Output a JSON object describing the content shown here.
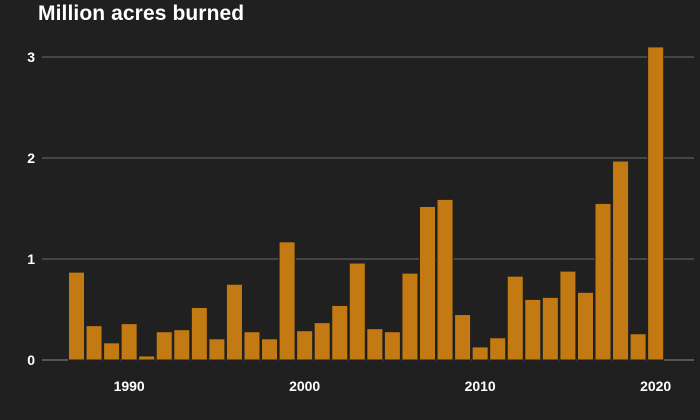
{
  "chart_data": {
    "type": "bar",
    "title": "Million acres burned",
    "xlabel": "",
    "ylabel": "",
    "ylim": [
      0,
      3.2
    ],
    "yticks": [
      0,
      1,
      2,
      3
    ],
    "xticks": [
      1990,
      2000,
      2010,
      2020
    ],
    "bar_color": "#c47a12",
    "background": "#202020",
    "grid": true,
    "categories": [
      1987,
      1988,
      1989,
      1990,
      1991,
      1992,
      1993,
      1994,
      1995,
      1996,
      1997,
      1998,
      1999,
      2000,
      2001,
      2002,
      2003,
      2004,
      2005,
      2006,
      2007,
      2008,
      2009,
      2010,
      2011,
      2012,
      2013,
      2014,
      2015,
      2016,
      2017,
      2018,
      2019,
      2020
    ],
    "values": [
      0.87,
      0.34,
      0.17,
      0.36,
      0.04,
      0.28,
      0.3,
      0.52,
      0.21,
      0.75,
      0.28,
      0.21,
      1.17,
      0.29,
      0.37,
      0.54,
      0.96,
      0.31,
      0.28,
      0.86,
      1.52,
      1.59,
      0.45,
      0.13,
      0.22,
      0.83,
      0.6,
      0.62,
      0.88,
      0.67,
      1.55,
      1.97,
      0.26,
      3.1
    ]
  }
}
